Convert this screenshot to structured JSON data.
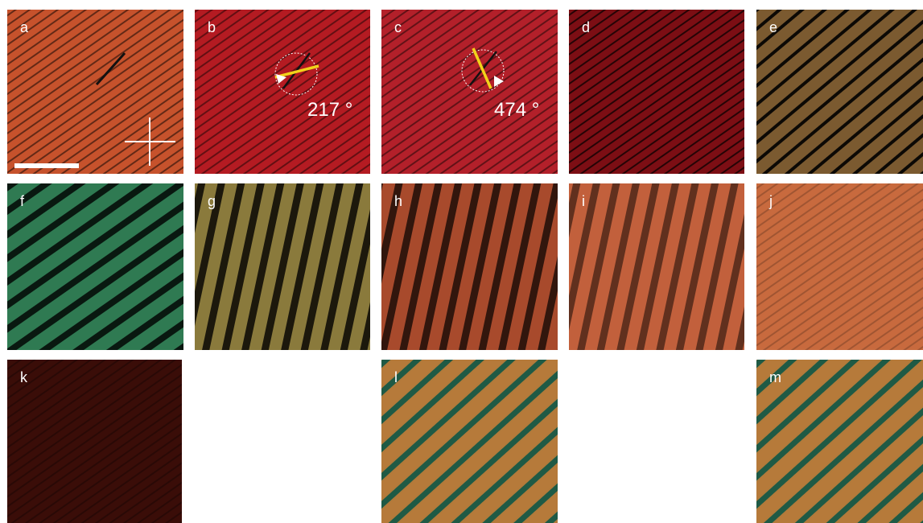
{
  "panels": [
    {
      "label": "a"
    },
    {
      "label": "b",
      "annotation": "217 °"
    },
    {
      "label": "c",
      "annotation": "474 °"
    },
    {
      "label": "d"
    },
    {
      "label": "e"
    },
    {
      "label": "f"
    },
    {
      "label": "g"
    },
    {
      "label": "h"
    },
    {
      "label": "i"
    },
    {
      "label": "j"
    },
    {
      "label": "k"
    },
    {
      "label": "l"
    },
    {
      "label": "m"
    }
  ]
}
